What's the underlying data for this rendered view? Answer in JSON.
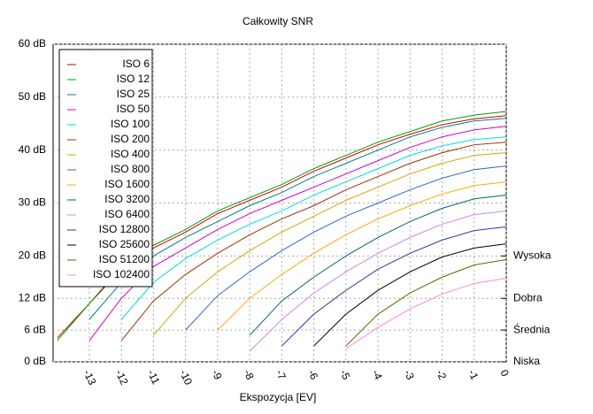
{
  "chart_data": {
    "type": "line",
    "title": "Całkowity SNR",
    "x_label": "Ekspozycja [EV]",
    "x": [
      -14,
      -13,
      -12,
      -11,
      -10,
      -9,
      -8,
      -7,
      -6,
      -5,
      -4,
      -3,
      -2,
      -1,
      0
    ],
    "xlim": [
      -14.13,
      0
    ],
    "xticks": [
      -13,
      -12,
      -11,
      -10,
      -9,
      -8,
      -7,
      -6,
      -5,
      -4,
      -3,
      -2,
      -1,
      0
    ],
    "ylim": [
      0,
      60
    ],
    "yticks": [
      {
        "value": 0,
        "label": "0 dB"
      },
      {
        "value": 6,
        "label": "6 dB"
      },
      {
        "value": 12,
        "label": "12 dB"
      },
      {
        "value": 20,
        "label": "20 dB"
      },
      {
        "value": 30,
        "label": "30 dB"
      },
      {
        "value": 40,
        "label": "40 dB"
      },
      {
        "value": 50,
        "label": "50 dB"
      },
      {
        "value": 60,
        "label": "60 dB"
      }
    ],
    "y2lim": [
      0,
      60
    ],
    "y2ticks": [
      {
        "value": 20,
        "label": "Wysoka"
      },
      {
        "value": 12,
        "label": "Dobra"
      },
      {
        "value": 6,
        "label": "Średnia"
      },
      {
        "value": 0,
        "label": "Niska"
      }
    ],
    "grid": true,
    "legend": "upper left",
    "series": [
      {
        "name": "ISO 6",
        "color": "#cc0000",
        "values": [
          4.5,
          11,
          17.5,
          21.5,
          24.5,
          28,
          30.5,
          33,
          36,
          38.5,
          41,
          43,
          44.8,
          45.9,
          46.5
        ]
      },
      {
        "name": "ISO 12",
        "color": "#00a000",
        "values": [
          4,
          11,
          18,
          22,
          25,
          28.5,
          31,
          33.5,
          36.5,
          39,
          41.5,
          43.5,
          45.5,
          46.6,
          47.3
        ]
      },
      {
        "name": "ISO 25",
        "color": "#008080",
        "values": [
          null,
          8,
          15,
          20,
          23.5,
          26.5,
          29.5,
          32,
          35,
          37.5,
          40,
          42.5,
          44.3,
          45.5,
          46
        ]
      },
      {
        "name": "ISO 50",
        "color": "#cc00cc",
        "values": [
          null,
          4,
          12,
          18,
          21.5,
          25,
          28,
          30.5,
          33,
          35.5,
          38,
          40.5,
          42.5,
          43.8,
          44.5
        ]
      },
      {
        "name": "ISO 100",
        "color": "#00dddd",
        "values": [
          null,
          null,
          8,
          15,
          19.5,
          23,
          26,
          28.5,
          31.5,
          34,
          36.5,
          39,
          40.8,
          42,
          42.5
        ]
      },
      {
        "name": "ISO 200",
        "color": "#993300",
        "values": [
          null,
          null,
          4,
          11.5,
          16.5,
          20.5,
          24,
          27,
          29.5,
          32.5,
          35,
          37.5,
          39.5,
          41,
          41.5
        ]
      },
      {
        "name": "ISO 400",
        "color": "#ccaa00",
        "values": [
          null,
          null,
          null,
          5,
          12,
          17,
          21,
          24.5,
          27.5,
          30.5,
          33,
          35.5,
          37.5,
          39,
          39.5
        ]
      },
      {
        "name": "ISO 800",
        "color": "#3366cc",
        "values": [
          null,
          null,
          null,
          null,
          6,
          12.5,
          17,
          21,
          24.5,
          27.5,
          30,
          32.5,
          34.7,
          36.3,
          37
        ]
      },
      {
        "name": "ISO 1600",
        "color": "#ffaa00",
        "values": [
          null,
          null,
          null,
          null,
          null,
          6,
          12,
          16.5,
          20.5,
          24,
          27,
          29.5,
          31.7,
          33.3,
          34
        ]
      },
      {
        "name": "ISO 3200",
        "color": "#006666",
        "values": [
          null,
          null,
          null,
          null,
          null,
          null,
          5,
          11.5,
          16,
          20,
          23.5,
          26.5,
          29,
          30.8,
          31.5
        ]
      },
      {
        "name": "ISO 6400",
        "color": "#cc88dd",
        "values": [
          null,
          null,
          null,
          null,
          null,
          null,
          2,
          8,
          13,
          17,
          20.5,
          23.5,
          26,
          27.8,
          28.5
        ]
      },
      {
        "name": "ISO 12800",
        "color": "#333399",
        "values": [
          null,
          null,
          null,
          null,
          null,
          null,
          null,
          3,
          9,
          13.5,
          17.5,
          20.5,
          23,
          24.8,
          25.5
        ]
      },
      {
        "name": "ISO 25600",
        "color": "#000000",
        "values": [
          null,
          null,
          null,
          null,
          null,
          null,
          null,
          null,
          3,
          9,
          13.5,
          17,
          19.8,
          21.5,
          22.3
        ]
      },
      {
        "name": "ISO 51200",
        "color": "#556b00",
        "values": [
          null,
          null,
          null,
          null,
          null,
          null,
          null,
          null,
          null,
          3,
          9,
          13,
          16,
          18.3,
          19.3
        ]
      },
      {
        "name": "ISO 102400",
        "color": "#ff88cc",
        "values": [
          null,
          null,
          null,
          null,
          null,
          null,
          null,
          null,
          null,
          2.5,
          6.5,
          10,
          12.8,
          14.8,
          15.8
        ]
      }
    ]
  }
}
